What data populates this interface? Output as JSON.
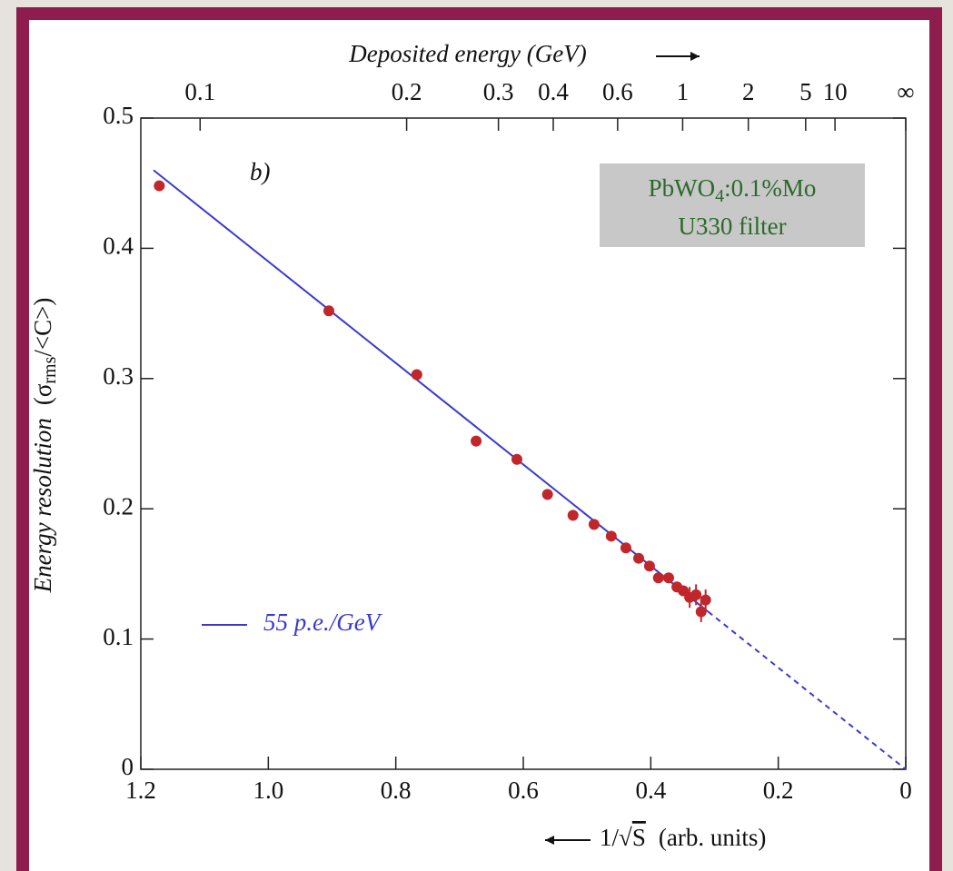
{
  "chart_data": {
    "type": "scatter",
    "title": "Deposited energy (GeV)",
    "y_label_parts": [
      "Energy resolution",
      "(σ",
      "rms",
      "/<C>)"
    ],
    "x_label_parts": [
      "1/√",
      "S",
      "(arb. units)"
    ],
    "annotation": "b)",
    "box_parts": [
      "PbWO",
      "4",
      ":0.1%Mo"
    ],
    "box_line2": "U330 filter",
    "points": {
      "color": "#c0262a",
      "x": [
        1.171,
        0.905,
        0.767,
        0.674,
        0.61,
        0.562,
        0.522,
        0.489,
        0.462,
        0.439,
        0.419,
        0.402,
        0.388,
        0.372,
        0.359,
        0.349,
        0.339,
        0.329,
        0.321,
        0.314
      ],
      "y": [
        0.448,
        0.352,
        0.303,
        0.252,
        0.238,
        0.211,
        0.195,
        0.188,
        0.179,
        0.17,
        0.162,
        0.156,
        0.147,
        0.147,
        0.14,
        0.137,
        0.132,
        0.134,
        0.121,
        0.13
      ],
      "errors": [
        0.003,
        0.003,
        0.003,
        0.003,
        0.003,
        0.003,
        0.003,
        0.003,
        0.003,
        0.003,
        0.003,
        0.003,
        0.003,
        0.003,
        0.003,
        0.003,
        0.008,
        0.008,
        0.008,
        0.008
      ]
    },
    "series": [
      {
        "name": "55 p.e./GeV",
        "color": "#3a3ad0",
        "x": [
          1.18,
          0.31
        ],
        "y": [
          0.46,
          0.121
        ]
      },
      {
        "color": "#3a3ad0",
        "dashed": true,
        "x": [
          0.31,
          0
        ],
        "y": [
          0.121,
          0
        ]
      }
    ],
    "xlim": [
      1.2,
      0
    ],
    "ylim": [
      0,
      0.5
    ],
    "xticks": [
      1.2,
      {
        "value": 1,
        "label": "1.0"
      },
      0.8,
      0.6,
      0.4,
      0.2,
      0
    ],
    "yticks": [
      0,
      0.1,
      0.2,
      0.3,
      0.4,
      0.5
    ],
    "x2ticks": [
      {
        "value": 1.107,
        "label": "0.1"
      },
      {
        "value": 0.783,
        "label": "0.2"
      },
      {
        "value": 0.639,
        "label": "0.3"
      },
      {
        "value": 0.553,
        "label": "0.4"
      },
      {
        "value": 0.452,
        "label": "0.6"
      },
      {
        "value": 0.35,
        "label": "1"
      },
      {
        "value": 0.247,
        "label": "2"
      },
      {
        "value": 0.157,
        "label": "5"
      },
      {
        "value": 0.111,
        "label": "10"
      },
      {
        "value": 0,
        "label": "∞"
      }
    ]
  }
}
